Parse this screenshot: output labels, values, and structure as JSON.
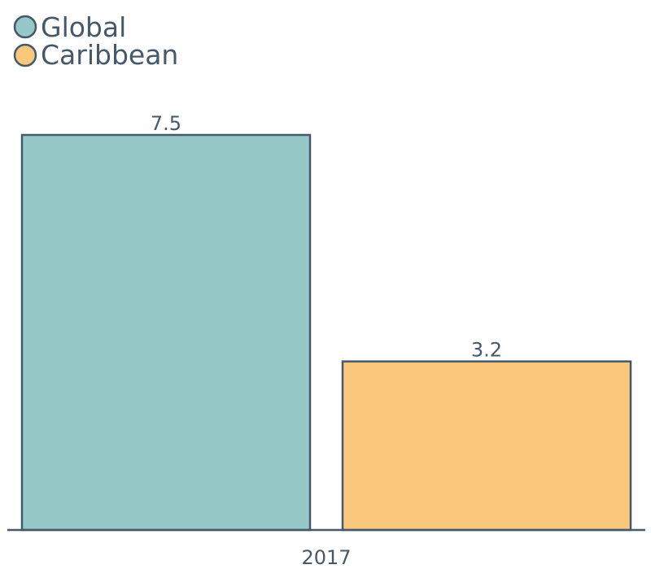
{
  "chart_data": {
    "type": "bar",
    "categories": [
      "2017"
    ],
    "series": [
      {
        "name": "Global",
        "values": [
          7.5
        ],
        "color": "#96c8c8"
      },
      {
        "name": "Caribbean",
        "values": [
          3.2
        ],
        "color": "#fac87c"
      }
    ],
    "value_labels": [
      "7.5",
      "3.2"
    ],
    "ylim": [
      0,
      8
    ],
    "legend_position": "top-left",
    "grid": false,
    "stroke_color": "#45596a",
    "text_color": "#45596a"
  }
}
